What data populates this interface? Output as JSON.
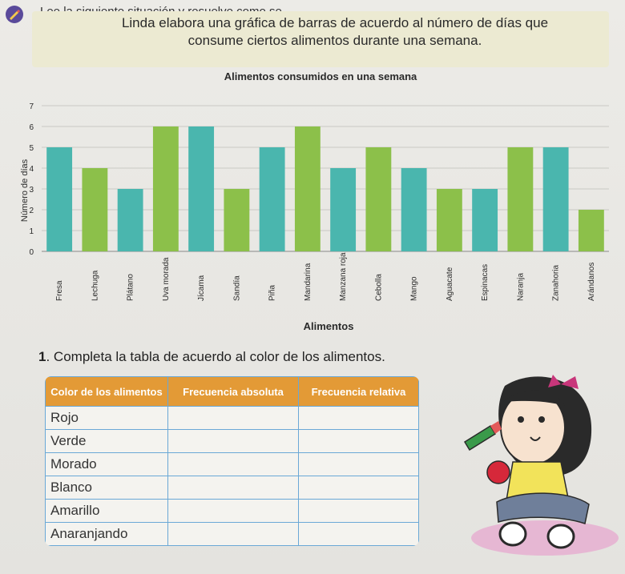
{
  "instruction": "Lee la siguiente situación y resuelve como se",
  "intro_text": "Linda elabora una gráfica de barras de acuerdo al número de días que consume ciertos alimentos durante una semana.",
  "chart_data": {
    "type": "bar",
    "title": "Alimentos consumidos en una semana",
    "xlabel": "Alimentos",
    "ylabel": "Número de días",
    "ylim": [
      0,
      7
    ],
    "yticks": [
      "0",
      "1",
      "2",
      "3",
      "4",
      "5",
      "6",
      "7"
    ],
    "categories": [
      "Fresa",
      "Lechuga",
      "Plátano",
      "Uva morada",
      "Jícama",
      "Sandía",
      "Piña",
      "Mandarina",
      "Manzana roja",
      "Cebolla",
      "Mango",
      "Aguacate",
      "Espinacas",
      "Naranja",
      "Zanahoria",
      "Arándanos"
    ],
    "values": [
      5,
      4,
      3,
      6,
      6,
      3,
      5,
      6,
      4,
      5,
      4,
      3,
      3,
      5,
      5,
      2
    ],
    "bar_colors": [
      "#4ab6ae",
      "#8cc04a",
      "#4ab6ae",
      "#8cc04a",
      "#4ab6ae",
      "#8cc04a",
      "#4ab6ae",
      "#8cc04a",
      "#4ab6ae",
      "#8cc04a",
      "#4ab6ae",
      "#8cc04a",
      "#4ab6ae",
      "#8cc04a",
      "#4ab6ae",
      "#8cc04a"
    ],
    "grid": true
  },
  "question": {
    "number": "1",
    "text": "Completa la tabla de acuerdo al color de los alimentos."
  },
  "table": {
    "headers": [
      "Color de los alimentos",
      "Frecuencia absoluta",
      "Frecuencia relativa"
    ],
    "rows": [
      "Rojo",
      "Verde",
      "Morado",
      "Blanco",
      "Amarillo",
      "Anaranjando"
    ]
  }
}
